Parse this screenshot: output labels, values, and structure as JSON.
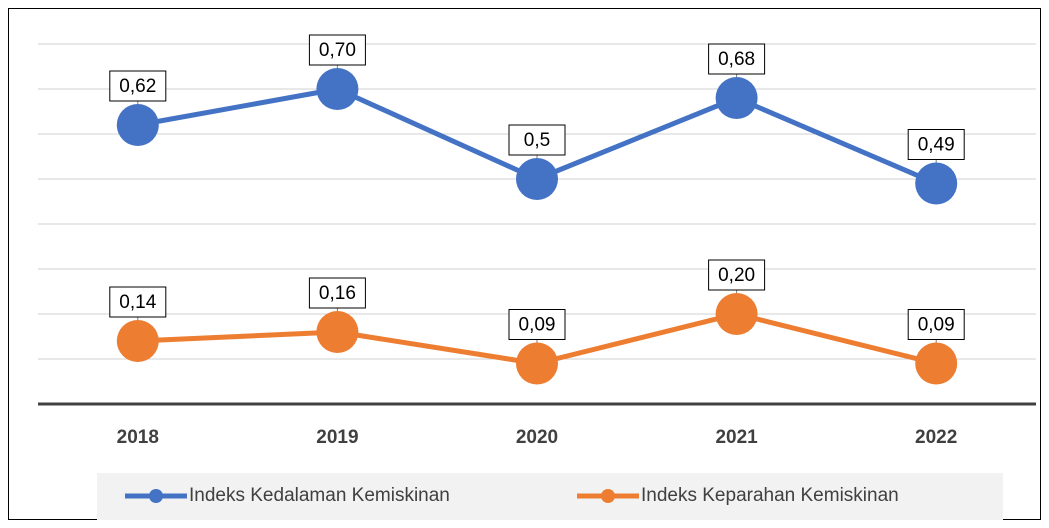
{
  "chart_data": {
    "type": "line",
    "categories": [
      "2018",
      "2019",
      "2020",
      "2021",
      "2022"
    ],
    "series": [
      {
        "name": "Indeks Kedalaman Kemiskinan",
        "color": "#4472c4",
        "values": [
          0.62,
          0.7,
          0.5,
          0.68,
          0.49
        ],
        "value_labels": [
          "0,62",
          "0,70",
          "0,5",
          "0,68",
          "0,49"
        ]
      },
      {
        "name": "Indeks Keparahan Kemiskinan",
        "color": "#ed7d31",
        "values": [
          0.14,
          0.16,
          0.09,
          0.2,
          0.09
        ],
        "value_labels": [
          "0,14",
          "0,16",
          "0,09",
          "0,20",
          "0,09"
        ]
      }
    ],
    "ylim": [
      0,
      0.8
    ],
    "yticks": [
      0,
      0.1,
      0.2,
      0.3,
      0.4,
      0.5,
      0.6,
      0.7,
      0.8
    ],
    "grid": true,
    "legend": "bottom"
  }
}
